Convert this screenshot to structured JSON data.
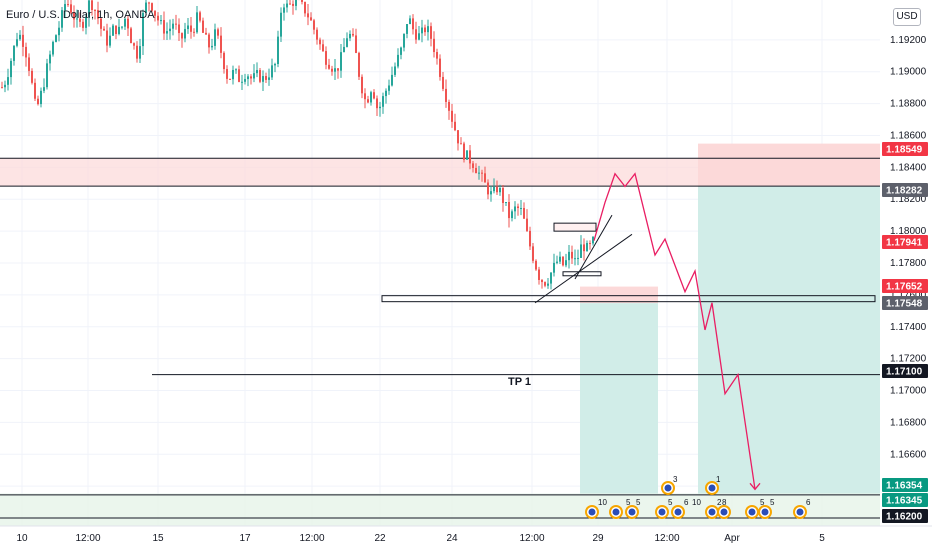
{
  "header": {
    "title": "Euro / U.S. Dollar, 1h, OANDA",
    "currency": "USD"
  },
  "colors": {
    "bull": "#26a69a",
    "bear": "#ef5350",
    "grid": "#f0f3fa",
    "stop_zone": "#fcd9d9",
    "target_zone": "#d1ede8",
    "projection": "#e91e63",
    "tag_dark": "#131722",
    "tag_red": "#f23645",
    "tag_grey": "#5d606b",
    "tag_green": "#089981"
  },
  "chart_data": {
    "type": "candlestick",
    "symbol": "Euro / U.S. Dollar",
    "interval": "1h",
    "exchange": "OANDA",
    "ylim": [
      1.1615,
      1.1945
    ],
    "y_ticks": [
      1.192,
      1.19,
      1.188,
      1.186,
      1.184,
      1.182,
      1.18,
      1.178,
      1.176,
      1.174,
      1.172,
      1.17,
      1.168,
      1.166,
      1.164
    ],
    "x_labels": [
      "10",
      "12:00",
      "15",
      "17",
      "12:00",
      "22",
      "24",
      "12:00",
      "29",
      "12:00",
      "Apr",
      "5"
    ],
    "price_path": [
      [
        0,
        1.1888
      ],
      [
        6,
        1.1895
      ],
      [
        12,
        1.191
      ],
      [
        18,
        1.1925
      ],
      [
        24,
        1.1918
      ],
      [
        30,
        1.19
      ],
      [
        36,
        1.1875
      ],
      [
        42,
        1.1888
      ],
      [
        48,
        1.1905
      ],
      [
        54,
        1.192
      ],
      [
        60,
        1.193
      ],
      [
        66,
        1.1945
      ],
      [
        72,
        1.1938
      ],
      [
        78,
        1.1928
      ],
      [
        84,
        1.1932
      ],
      [
        90,
        1.1945
      ],
      [
        96,
        1.1938
      ],
      [
        102,
        1.1925
      ],
      [
        108,
        1.1918
      ],
      [
        114,
        1.1928
      ],
      [
        120,
        1.1925
      ],
      [
        126,
        1.1935
      ],
      [
        132,
        1.1918
      ],
      [
        138,
        1.191
      ],
      [
        144,
        1.194
      ],
      [
        150,
        1.1945
      ],
      [
        156,
        1.1935
      ],
      [
        162,
        1.1928
      ],
      [
        168,
        1.1925
      ],
      [
        174,
        1.1932
      ],
      [
        180,
        1.1918
      ],
      [
        186,
        1.1928
      ],
      [
        192,
        1.1925
      ],
      [
        198,
        1.1935
      ],
      [
        204,
        1.1922
      ],
      [
        210,
        1.1915
      ],
      [
        216,
        1.1925
      ],
      [
        222,
        1.191
      ],
      [
        228,
        1.1895
      ],
      [
        234,
        1.19
      ],
      [
        240,
        1.1895
      ],
      [
        246,
        1.19
      ],
      [
        252,
        1.1895
      ],
      [
        258,
        1.1898
      ],
      [
        264,
        1.1895
      ],
      [
        270,
        1.19
      ],
      [
        276,
        1.1905
      ],
      [
        282,
        1.1945
      ],
      [
        288,
        1.194
      ],
      [
        294,
        1.1945
      ],
      [
        300,
        1.1942
      ],
      [
        306,
        1.1938
      ],
      [
        312,
        1.193
      ],
      [
        318,
        1.192
      ],
      [
        324,
        1.191
      ],
      [
        330,
        1.1905
      ],
      [
        336,
        1.19
      ],
      [
        342,
        1.191
      ],
      [
        348,
        1.1925
      ],
      [
        354,
        1.1918
      ],
      [
        360,
        1.1895
      ],
      [
        366,
        1.188
      ],
      [
        372,
        1.1892
      ],
      [
        378,
        1.1875
      ],
      [
        384,
        1.1885
      ],
      [
        390,
        1.1895
      ],
      [
        396,
        1.1905
      ],
      [
        402,
        1.1915
      ],
      [
        408,
        1.1935
      ],
      [
        414,
        1.1925
      ],
      [
        420,
        1.1922
      ],
      [
        426,
        1.1928
      ],
      [
        432,
        1.192
      ],
      [
        438,
        1.1905
      ],
      [
        444,
        1.189
      ],
      [
        450,
        1.1875
      ],
      [
        456,
        1.1862
      ],
      [
        462,
        1.185
      ],
      [
        468,
        1.1846
      ],
      [
        474,
        1.1842
      ],
      [
        480,
        1.1835
      ],
      [
        486,
        1.1828
      ],
      [
        492,
        1.1822
      ],
      [
        498,
        1.1828
      ],
      [
        504,
        1.1818
      ],
      [
        510,
        1.1808
      ],
      [
        516,
        1.1815
      ],
      [
        522,
        1.1812
      ],
      [
        528,
        1.1795
      ],
      [
        534,
        1.1782
      ],
      [
        540,
        1.177
      ],
      [
        546,
        1.1768
      ],
      [
        552,
        1.1775
      ],
      [
        558,
        1.1782
      ],
      [
        564,
        1.1778
      ],
      [
        570,
        1.1786
      ],
      [
        576,
        1.178
      ],
      [
        582,
        1.1792
      ],
      [
        588,
        1.1788
      ],
      [
        594,
        1.1794
      ]
    ],
    "horizontal_levels": [
      {
        "price": 1.18549,
        "label": "1.18549",
        "tag": "red"
      },
      {
        "price": 1.18282,
        "label": "1.18282",
        "tag": "grey"
      },
      {
        "price": 1.17941,
        "label": "1.17941",
        "tag": "red"
      },
      {
        "price": 1.17652,
        "label": "1.17652",
        "tag": "red"
      },
      {
        "price": 1.17548,
        "label": "1.17548",
        "tag": "grey"
      },
      {
        "price": 1.171,
        "label": "1.17100",
        "tag": "dark"
      },
      {
        "price": 1.16354,
        "label": "1.16354",
        "tag": "green"
      },
      {
        "price": 1.16345,
        "label": "1.16345",
        "tag": "green"
      },
      {
        "price": 1.162,
        "label": "1.16200",
        "tag": "dark"
      }
    ],
    "annotations": [
      {
        "text": "TP 1",
        "price": 1.1706
      }
    ],
    "projection_path": [
      [
        594,
        1.1794
      ],
      [
        605,
        1.1818
      ],
      [
        615,
        1.1836
      ],
      [
        625,
        1.1828
      ],
      [
        635,
        1.1836
      ],
      [
        655,
        1.1785
      ],
      [
        665,
        1.1795
      ],
      [
        685,
        1.1762
      ],
      [
        695,
        1.1775
      ],
      [
        705,
        1.1738
      ],
      [
        712,
        1.1755
      ],
      [
        725,
        1.1698
      ],
      [
        738,
        1.171
      ],
      [
        755,
        1.1638
      ]
    ],
    "positions": [
      {
        "x_range": [
          580,
          658
        ],
        "entry": 1.17548,
        "stop": 1.17652,
        "target": 1.16354
      },
      {
        "x_range": [
          698,
          880
        ],
        "entry": 1.18282,
        "stop": 1.18549,
        "target": 1.16354
      }
    ],
    "event_counts": [
      "10",
      "5",
      "5",
      "5",
      "6",
      "2",
      "8",
      "5",
      "5",
      "6",
      "3",
      "1",
      "10"
    ]
  }
}
